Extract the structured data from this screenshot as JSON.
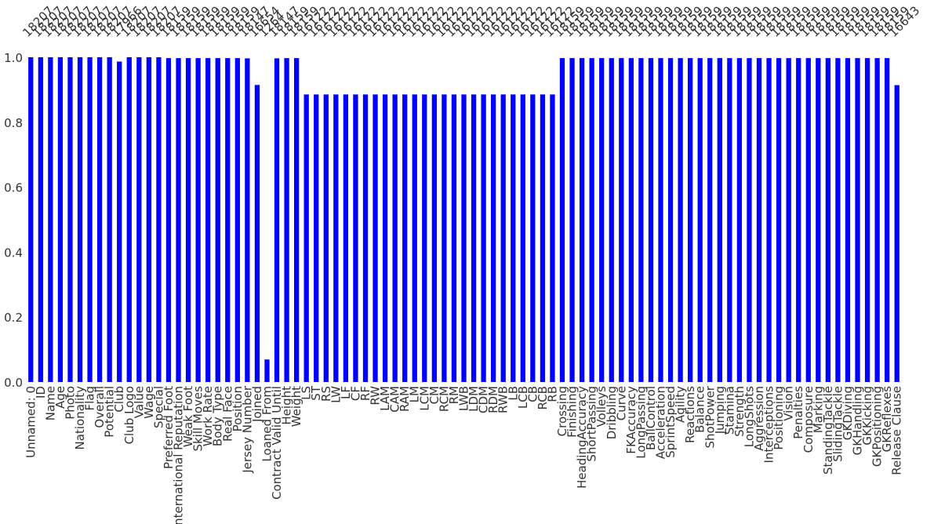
{
  "chart_data": {
    "type": "bar",
    "categories": [
      "Unnamed: 0",
      "ID",
      "Name",
      "Age",
      "Photo",
      "Nationality",
      "Flag",
      "Overall",
      "Potential",
      "Club",
      "Club Logo",
      "Value",
      "Wage",
      "Special",
      "Preferred Foot",
      "International Reputation",
      "Weak Foot",
      "Skill Moves",
      "Work Rate",
      "Body Type",
      "Real Face",
      "Position",
      "Jersey Number",
      "Joined",
      "Loaned From",
      "Contract Valid Until",
      "Height",
      "Weight",
      "LS",
      "ST",
      "RS",
      "LW",
      "LF",
      "CF",
      "RF",
      "RW",
      "LAM",
      "CAM",
      "RAM",
      "LM",
      "LCM",
      "CM",
      "RCM",
      "RM",
      "LWB",
      "LDM",
      "CDM",
      "RDM",
      "RWB",
      "LB",
      "LCB",
      "CB",
      "RCB",
      "RB",
      "Crossing",
      "Finishing",
      "HeadingAccuracy",
      "ShortPassing",
      "Volleys",
      "Dribbling",
      "Curve",
      "FKAccuracy",
      "LongPassing",
      "BallControl",
      "Acceleration",
      "SprintSpeed",
      "Agility",
      "Reactions",
      "Balance",
      "ShotPower",
      "Jumping",
      "Stamina",
      "Strength",
      "LongShots",
      "Aggression",
      "Interceptions",
      "Positioning",
      "Vision",
      "Penalties",
      "Composure",
      "Marking",
      "StandingTackle",
      "SlidingTackle",
      "GKDiving",
      "GKHandling",
      "GKKicking",
      "GKPositioning",
      "GKReflexes",
      "Release Clause"
    ],
    "values": [
      1,
      1,
      1,
      1,
      1,
      1,
      1,
      1,
      1,
      0.9868,
      1,
      1,
      1,
      1,
      0.9974,
      0.9974,
      0.9974,
      0.9974,
      0.9974,
      0.9974,
      0.9974,
      0.9974,
      0.9967,
      0.9147,
      0.0694,
      0.9967,
      0.9974,
      0.9974,
      0.8855,
      0.8855,
      0.8855,
      0.8855,
      0.8855,
      0.8855,
      0.8855,
      0.8855,
      0.8855,
      0.8855,
      0.8855,
      0.8855,
      0.8855,
      0.8855,
      0.8855,
      0.8855,
      0.8855,
      0.8855,
      0.8855,
      0.8855,
      0.8855,
      0.8855,
      0.8855,
      0.8855,
      0.8855,
      0.8855,
      0.9974,
      0.9974,
      0.9974,
      0.9974,
      0.9974,
      0.9974,
      0.9974,
      0.9974,
      0.9974,
      0.9974,
      0.9974,
      0.9974,
      0.9974,
      0.9974,
      0.9974,
      0.9974,
      0.9974,
      0.9974,
      0.9974,
      0.9974,
      0.9974,
      0.9974,
      0.9974,
      0.9974,
      0.9974,
      0.9974,
      0.9974,
      0.9974,
      0.9974,
      0.9974,
      0.9974,
      0.9974,
      0.9974,
      0.9974,
      0.9141
    ],
    "counts": [
      18207,
      18207,
      18207,
      18207,
      18207,
      18207,
      18207,
      18207,
      18207,
      17966,
      18207,
      18207,
      18207,
      18207,
      18159,
      18159,
      18159,
      18159,
      18159,
      18159,
      18159,
      18159,
      18147,
      16654,
      1264,
      18147,
      18159,
      18159,
      16122,
      16122,
      16122,
      16122,
      16122,
      16122,
      16122,
      16122,
      16122,
      16122,
      16122,
      16122,
      16122,
      16122,
      16122,
      16122,
      16122,
      16122,
      16122,
      16122,
      16122,
      16122,
      16122,
      16122,
      16122,
      16122,
      18159,
      18159,
      18159,
      18159,
      18159,
      18159,
      18159,
      18159,
      18159,
      18159,
      18159,
      18159,
      18159,
      18159,
      18159,
      18159,
      18159,
      18159,
      18159,
      18159,
      18159,
      18159,
      18159,
      18159,
      18159,
      18159,
      18159,
      18159,
      18159,
      18159,
      18159,
      18159,
      18159,
      18159,
      16643
    ],
    "color": "#0000ff",
    "ylim": [
      0,
      1
    ],
    "yticks": [
      {
        "value": 0,
        "label": "0.0"
      },
      {
        "value": 0.2,
        "label": "0.2"
      },
      {
        "value": 0.4,
        "label": "0.4"
      },
      {
        "value": 0.6,
        "label": "0.6"
      },
      {
        "value": 0.8,
        "label": "0.8"
      },
      {
        "value": 1,
        "label": "1.0"
      }
    ],
    "grid": false
  }
}
